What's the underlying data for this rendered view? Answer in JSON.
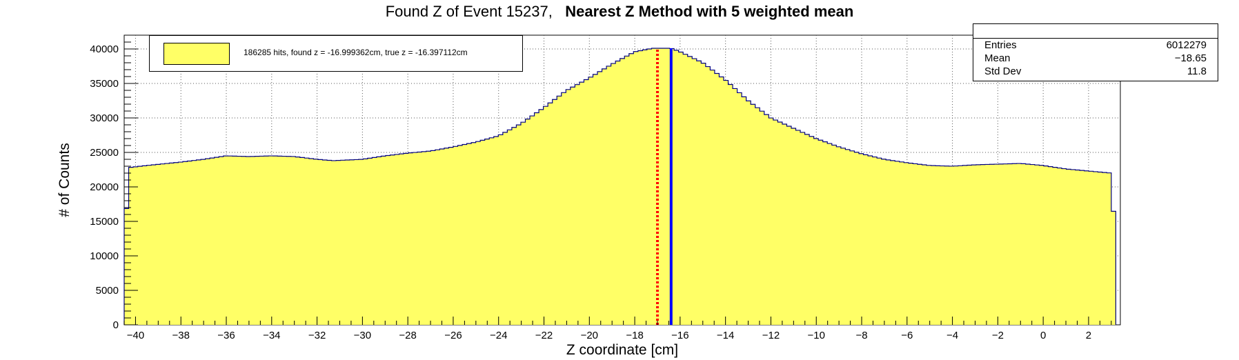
{
  "title": {
    "prefix": "Found Z of Event 15237,",
    "bold": "Nearest Z Method with 5 weighted mean"
  },
  "stats": {
    "entries_label": "Entries",
    "entries_value": "6012279",
    "mean_label": "Mean",
    "mean_value": "−18.65",
    "std_label": "Std Dev",
    "std_value": "11.8"
  },
  "legend": {
    "text": "186285 hits, found z = -16.999362cm, true z = -16.397112cm"
  },
  "chart_data": {
    "type": "area",
    "xlabel": "Z coordinate [cm]",
    "ylabel": "# of Counts",
    "xlim": [
      -40.5,
      3.4
    ],
    "ylim": [
      0,
      42000
    ],
    "xticks": [
      -40,
      -38,
      -36,
      -34,
      -32,
      -30,
      -28,
      -26,
      -24,
      -22,
      -20,
      -18,
      -16,
      -14,
      -12,
      -10,
      -8,
      -6,
      -4,
      -2,
      0,
      2
    ],
    "yticks": [
      0,
      5000,
      10000,
      15000,
      20000,
      25000,
      30000,
      35000,
      40000
    ],
    "grid": true,
    "fill_color": "#ffff66",
    "line_color": "#000080",
    "points": [
      [
        -40.5,
        11000
      ],
      [
        -40.3,
        22800
      ],
      [
        -39.5,
        23100
      ],
      [
        -38,
        23600
      ],
      [
        -37,
        24000
      ],
      [
        -36,
        24500
      ],
      [
        -35,
        24400
      ],
      [
        -34,
        24500
      ],
      [
        -33,
        24400
      ],
      [
        -32,
        24000
      ],
      [
        -31.3,
        23800
      ],
      [
        -30,
        24000
      ],
      [
        -29,
        24500
      ],
      [
        -28,
        24900
      ],
      [
        -27,
        25200
      ],
      [
        -26,
        25800
      ],
      [
        -25,
        26500
      ],
      [
        -24,
        27400
      ],
      [
        -23,
        29200
      ],
      [
        -22,
        31500
      ],
      [
        -21,
        34000
      ],
      [
        -20,
        35800
      ],
      [
        -19,
        37800
      ],
      [
        -18,
        39600
      ],
      [
        -17.2,
        40100
      ],
      [
        -16.4,
        40100
      ],
      [
        -16,
        39600
      ],
      [
        -15,
        38000
      ],
      [
        -14,
        35500
      ],
      [
        -13,
        32500
      ],
      [
        -12,
        30000
      ],
      [
        -11,
        28500
      ],
      [
        -10,
        27000
      ],
      [
        -9,
        25800
      ],
      [
        -8,
        24800
      ],
      [
        -7,
        24000
      ],
      [
        -6,
        23500
      ],
      [
        -5,
        23100
      ],
      [
        -4,
        23000
      ],
      [
        -3,
        23200
      ],
      [
        -2,
        23300
      ],
      [
        -1,
        23400
      ],
      [
        0,
        23100
      ],
      [
        1,
        22600
      ],
      [
        2,
        22300
      ],
      [
        3,
        22000
      ],
      [
        3.2,
        11000
      ]
    ],
    "markers": [
      {
        "name": "found z",
        "x": -16.999362,
        "color": "#ff0000",
        "style": "dotted"
      },
      {
        "name": "true z",
        "x": -16.397112,
        "color": "#0000ff",
        "style": "solid"
      }
    ]
  }
}
